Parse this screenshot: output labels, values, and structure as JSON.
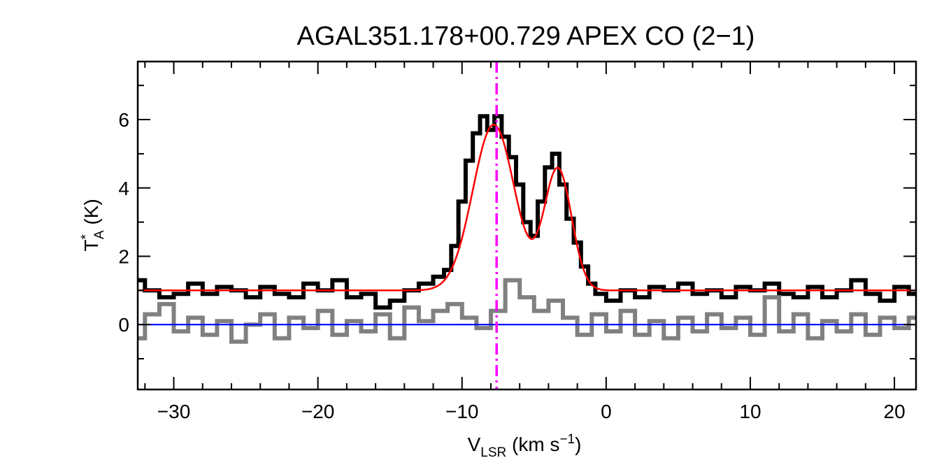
{
  "chart_data": {
    "type": "line",
    "title": "AGAL351.178+00.729  APEX CO (2−1)",
    "xlabel": {
      "main": "V",
      "sub": "LSR",
      "unit_open": " (km s",
      "sup": "−1",
      "unit_close": ")"
    },
    "ylabel": {
      "main": "T",
      "sup": "*",
      "sub": "A",
      "unit": " (K)"
    },
    "xlim": [
      -32.5,
      21.5
    ],
    "ylim": [
      -1.9,
      7.7
    ],
    "x_ticks": [
      -30,
      -20,
      -10,
      0,
      10,
      20
    ],
    "x_tick_labels": [
      "−30",
      "−20",
      "−10",
      "0",
      "10",
      "20"
    ],
    "y_ticks": [
      0,
      2,
      4,
      6
    ],
    "y_tick_labels": [
      "0",
      "2",
      "4",
      "6"
    ],
    "reference_velocity": -7.6,
    "zero_level": 0,
    "series": [
      {
        "name": "observed spectrum",
        "style": "histogram",
        "color": "#000000",
        "x": [
          -32.5,
          -31.5,
          -30.5,
          -29.5,
          -28.5,
          -27.5,
          -26.5,
          -25.5,
          -24.5,
          -23.5,
          -22.5,
          -21.5,
          -20.5,
          -19.5,
          -18.5,
          -17.5,
          -16.5,
          -15.5,
          -14.5,
          -13.5,
          -12.5,
          -11.5,
          -11.0,
          -10.5,
          -10.0,
          -9.5,
          -9.0,
          -8.5,
          -8.0,
          -7.5,
          -7.0,
          -6.5,
          -6.0,
          -5.5,
          -5.0,
          -4.5,
          -4.0,
          -3.5,
          -3.0,
          -2.5,
          -2.0,
          -1.5,
          -1.0,
          -0.5,
          0.5,
          1.5,
          2.5,
          3.5,
          4.5,
          5.5,
          6.5,
          7.5,
          8.5,
          9.5,
          10.5,
          11.5,
          12.5,
          13.5,
          14.5,
          15.5,
          16.5,
          17.5,
          18.5,
          19.5,
          20.5,
          21.5
        ],
        "values": [
          1.3,
          1.0,
          0.8,
          0.9,
          1.2,
          0.9,
          1.1,
          1.0,
          0.8,
          1.1,
          0.9,
          0.8,
          1.2,
          1.0,
          1.3,
          0.8,
          0.9,
          0.5,
          0.7,
          1.0,
          1.2,
          1.4,
          1.6,
          2.3,
          3.6,
          4.8,
          5.6,
          6.1,
          5.7,
          6.1,
          5.5,
          4.9,
          4.1,
          3.0,
          2.6,
          3.6,
          4.6,
          5.0,
          4.1,
          3.1,
          2.4,
          1.7,
          1.2,
          0.9,
          0.7,
          1.0,
          0.8,
          1.1,
          1.0,
          1.2,
          0.9,
          1.0,
          0.8,
          1.1,
          1.0,
          1.2,
          0.9,
          0.8,
          1.1,
          0.8,
          1.0,
          1.3,
          0.9,
          0.7,
          1.1,
          0.9
        ]
      },
      {
        "name": "residuals",
        "style": "histogram",
        "color": "#808080",
        "x": [
          -32.5,
          -31.5,
          -30.5,
          -29.5,
          -28.5,
          -27.5,
          -26.5,
          -25.5,
          -24.5,
          -23.5,
          -22.5,
          -21.5,
          -20.5,
          -19.5,
          -18.5,
          -17.5,
          -16.5,
          -15.5,
          -14.5,
          -13.5,
          -12.5,
          -11.5,
          -10.5,
          -9.5,
          -8.5,
          -7.5,
          -6.5,
          -5.5,
          -4.5,
          -3.5,
          -2.5,
          -1.5,
          -0.5,
          0.5,
          1.5,
          2.5,
          3.5,
          4.5,
          5.5,
          6.5,
          7.5,
          8.5,
          9.5,
          10.5,
          11.5,
          12.5,
          13.5,
          14.5,
          15.5,
          16.5,
          17.5,
          18.5,
          19.5,
          20.5,
          21.5
        ],
        "values": [
          -0.4,
          0.3,
          0.6,
          -0.2,
          0.2,
          -0.3,
          0.1,
          -0.5,
          0.0,
          0.3,
          -0.4,
          0.2,
          -0.1,
          0.4,
          -0.3,
          0.1,
          -0.2,
          0.3,
          -0.4,
          0.5,
          0.1,
          0.4,
          0.6,
          0.2,
          -0.1,
          0.4,
          1.3,
          0.8,
          0.4,
          0.7,
          0.2,
          -0.3,
          0.3,
          -0.2,
          0.4,
          -0.3,
          0.1,
          -0.4,
          0.2,
          -0.2,
          0.3,
          -0.1,
          0.2,
          -0.3,
          0.8,
          -0.2,
          0.3,
          -0.4,
          0.1,
          -0.2,
          0.3,
          -0.3,
          0.2,
          -0.1,
          0.2
        ]
      },
      {
        "name": "two-gaussian fit",
        "style": "model",
        "color": "#ff0000",
        "baseline": 1.0,
        "components": [
          {
            "amplitude": 4.85,
            "center": -7.8,
            "sigma": 1.45
          },
          {
            "amplitude": 3.55,
            "center": -3.35,
            "sigma": 0.95
          }
        ]
      },
      {
        "name": "baseline",
        "style": "hline",
        "color": "#0000ff",
        "y": 0
      }
    ],
    "marker_color": "#ff00ff"
  }
}
